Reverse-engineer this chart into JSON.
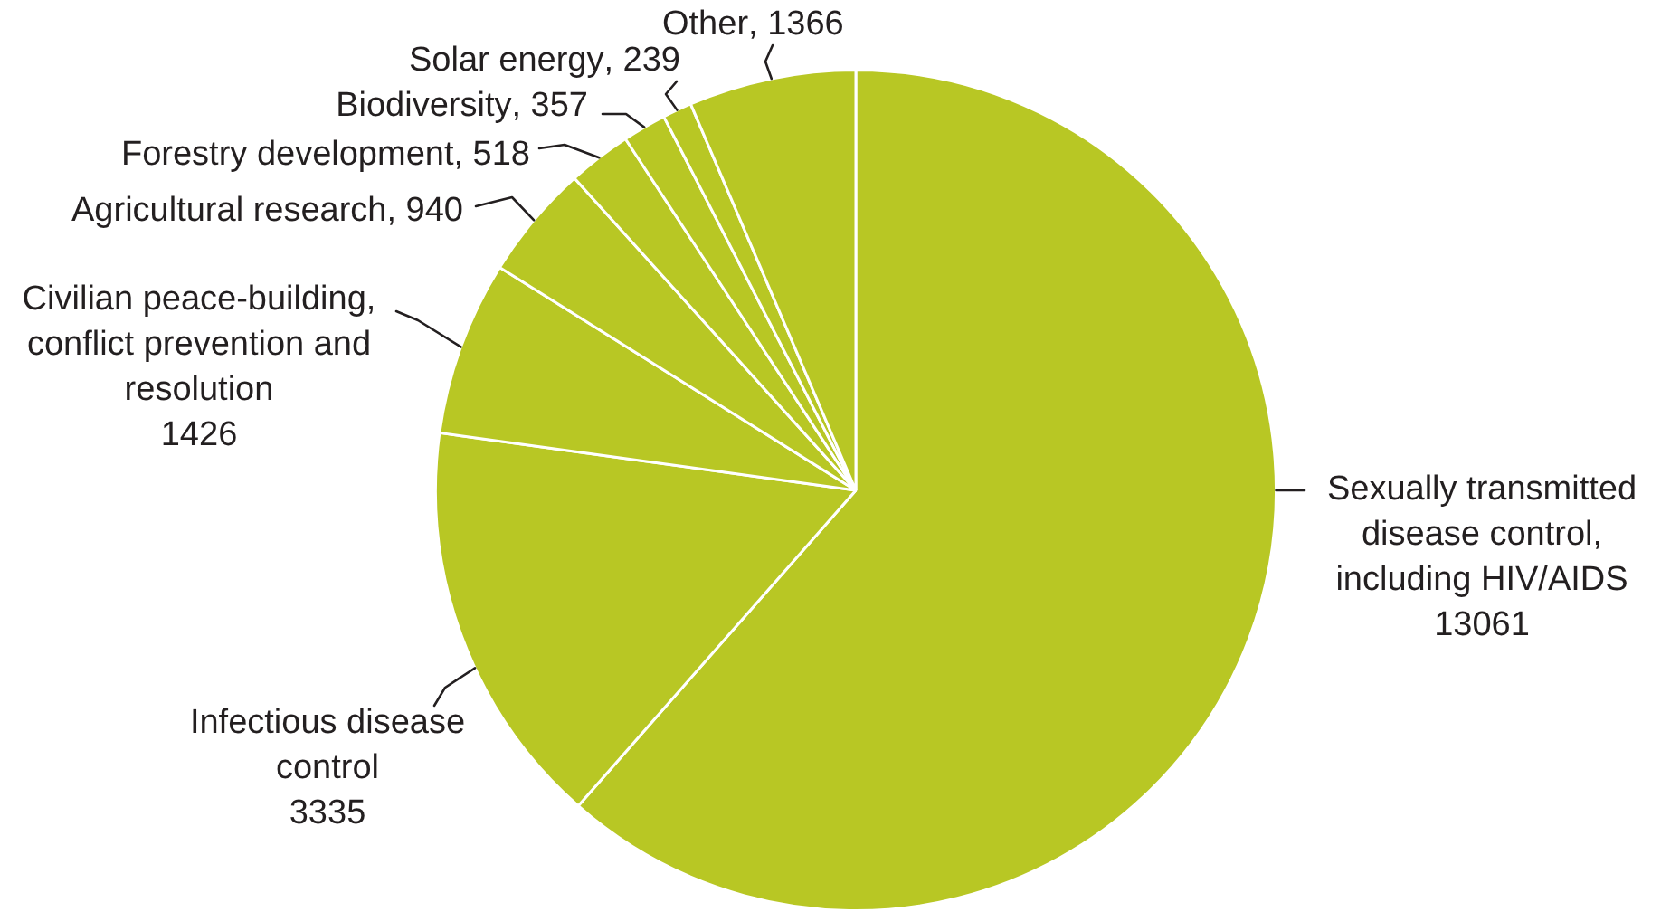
{
  "chart_data": {
    "type": "pie",
    "categories": [
      "Sexually transmitted disease control, including HIV/AIDS",
      "Infectious disease control",
      "Civilian peace-building, conflict prevention and resolution",
      "Agricultural research",
      "Forestry development",
      "Biodiversity",
      "Solar energy",
      "Other"
    ],
    "values": [
      13061,
      3335,
      1426,
      940,
      518,
      357,
      239,
      1366
    ],
    "value_labels": [
      "13061",
      "3335",
      "1426",
      ", 940",
      ", 518",
      ", 357",
      ", 239",
      ", 1366"
    ],
    "colors": [
      "#b8c724",
      "#b8c724",
      "#b8c724",
      "#b8c724",
      "#b8c724",
      "#b8c724",
      "#b8c724",
      "#b8c724"
    ]
  }
}
